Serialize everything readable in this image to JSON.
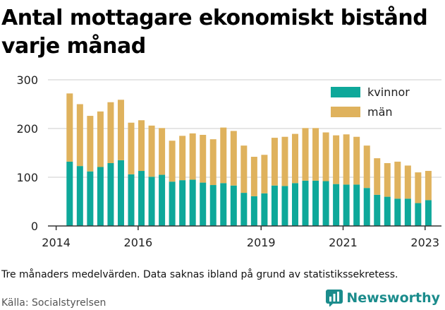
{
  "title": "Antal mottagare ekonomiskt bistånd varje månad",
  "note": "Tre månaders medelvärden. Data saknas ibland på grund av statistikssekretess.",
  "source": "Källa: Socialstyrelsen",
  "brand": {
    "name": "Newsworthy",
    "icon": "newsworthy-logo-icon",
    "color": "#1b8c8c"
  },
  "colors": {
    "kvinnor": "#0ea89a",
    "man": "#dfb25d",
    "grid": "#cccccc",
    "axis": "#333333"
  },
  "chart_data": {
    "type": "bar",
    "stacked": true,
    "grid": true,
    "legend_position": "top-right",
    "xlim": [
      2013.8,
      2023.4
    ],
    "ylim": [
      0,
      300
    ],
    "xticks": [
      2014,
      2016,
      2019,
      2021,
      2023
    ],
    "xtick_labels": [
      "2014",
      "2016",
      "2019",
      "2021",
      "2023"
    ],
    "yticks": [
      0,
      100,
      200,
      300
    ],
    "ytick_labels": [
      "0",
      "100",
      "200",
      "300"
    ],
    "x": [
      2014.33,
      2014.58,
      2014.83,
      2015.08,
      2015.33,
      2015.58,
      2015.83,
      2016.08,
      2016.33,
      2016.58,
      2016.83,
      2017.08,
      2017.33,
      2017.58,
      2017.83,
      2018.08,
      2018.33,
      2018.58,
      2018.83,
      2019.08,
      2019.33,
      2019.58,
      2019.83,
      2020.08,
      2020.33,
      2020.58,
      2020.83,
      2021.08,
      2021.33,
      2021.58,
      2021.83,
      2022.08,
      2022.33,
      2022.58,
      2022.83,
      2023.08
    ],
    "series": [
      {
        "name": "kvinnor",
        "values": [
          132,
          123,
          112,
          121,
          129,
          135,
          106,
          113,
          101,
          105,
          91,
          94,
          95,
          89,
          84,
          88,
          83,
          68,
          61,
          67,
          83,
          82,
          88,
          93,
          93,
          92,
          86,
          85,
          85,
          78,
          64,
          60,
          56,
          56,
          47,
          53
        ]
      },
      {
        "name": "män",
        "values": [
          140,
          127,
          114,
          114,
          125,
          124,
          106,
          104,
          105,
          96,
          84,
          91,
          95,
          98,
          94,
          114,
          112,
          97,
          81,
          79,
          98,
          101,
          101,
          108,
          108,
          100,
          100,
          103,
          98,
          87,
          75,
          69,
          76,
          68,
          63,
          60
        ]
      }
    ]
  }
}
